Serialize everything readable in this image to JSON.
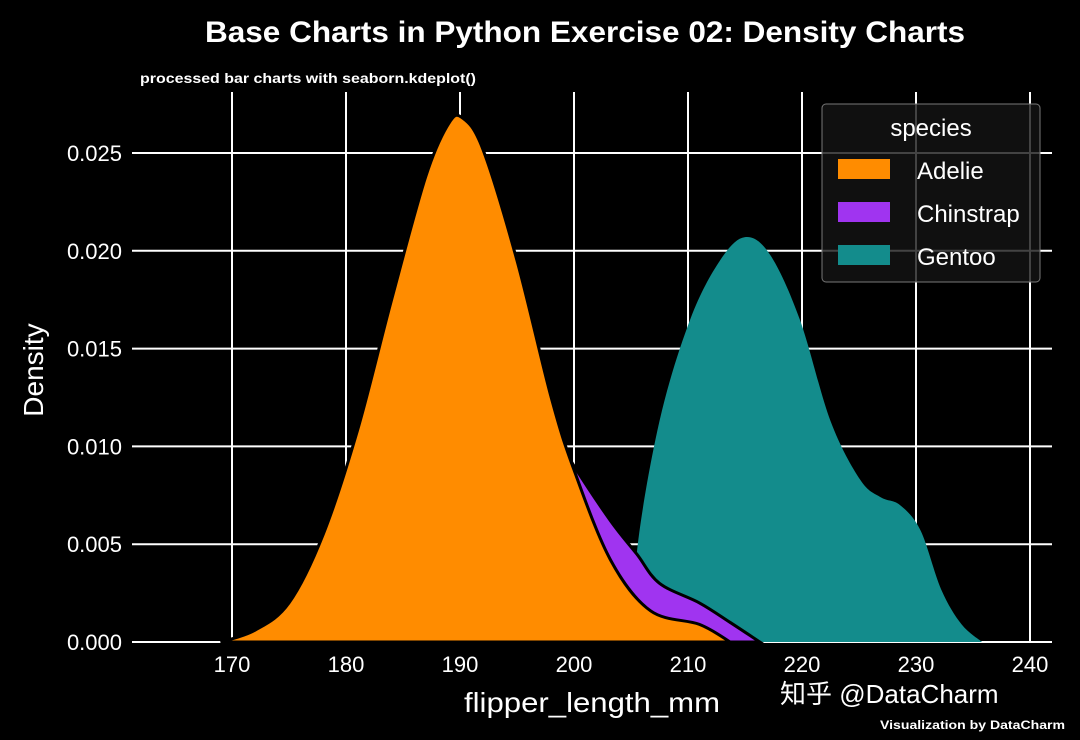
{
  "chart_data": {
    "type": "area",
    "title": "Base Charts in Python Exercise 02: Density Charts",
    "subtitle": "processed bar charts with seaborn.kdeplot()",
    "xlabel": "flipper_length_mm",
    "ylabel": "Density",
    "xlim": [
      162,
      242
    ],
    "ylim": [
      0,
      0.028
    ],
    "xticks": [
      "170",
      "180",
      "190",
      "200",
      "210",
      "220",
      "230",
      "240"
    ],
    "yticks": [
      "0.000",
      "0.005",
      "0.010",
      "0.015",
      "0.020",
      "0.025"
    ],
    "grid": true,
    "legend": {
      "title": "species",
      "placement": "top-right"
    },
    "series": [
      {
        "name": "Gentoo",
        "color": "#138c8c",
        "x": [
          205.5,
          205.5,
          207.5,
          210.2,
          212.8,
          215,
          217.2,
          219.8,
          222.5,
          225.1,
          226.9,
          228.6,
          230.4,
          232.2,
          234,
          235.8
        ],
        "y": [
          0,
          0.0045,
          0.0113,
          0.0165,
          0.0195,
          0.0207,
          0.0198,
          0.0165,
          0.0113,
          0.0083,
          0.0074,
          0.007,
          0.0057,
          0.0027,
          0.0009,
          0
        ]
      },
      {
        "name": "Chinstrap",
        "color": "#a034f0",
        "x": [
          196,
          198,
          200,
          203.2,
          205.5,
          207.5,
          211,
          213.7,
          216.3
        ],
        "y": [
          0.0125,
          0.011,
          0.009,
          0.0062,
          0.0045,
          0.003,
          0.002,
          0.001,
          0
        ]
      },
      {
        "name": "Adelie",
        "color": "#ff8c00",
        "x": [
          169,
          172,
          175,
          178,
          181,
          184,
          187,
          189,
          190.2,
          192,
          195,
          198,
          200,
          203.2,
          206.7,
          211,
          213.7
        ],
        "y": [
          0,
          0.0006,
          0.002,
          0.0055,
          0.0108,
          0.0175,
          0.0238,
          0.0265,
          0.0268,
          0.0252,
          0.0195,
          0.0125,
          0.0088,
          0.0042,
          0.0016,
          0.0009,
          0
        ]
      }
    ]
  },
  "watermark": {
    "zhihu": "知乎 @DataCharm",
    "credit": "Visualization by DataCharm"
  }
}
